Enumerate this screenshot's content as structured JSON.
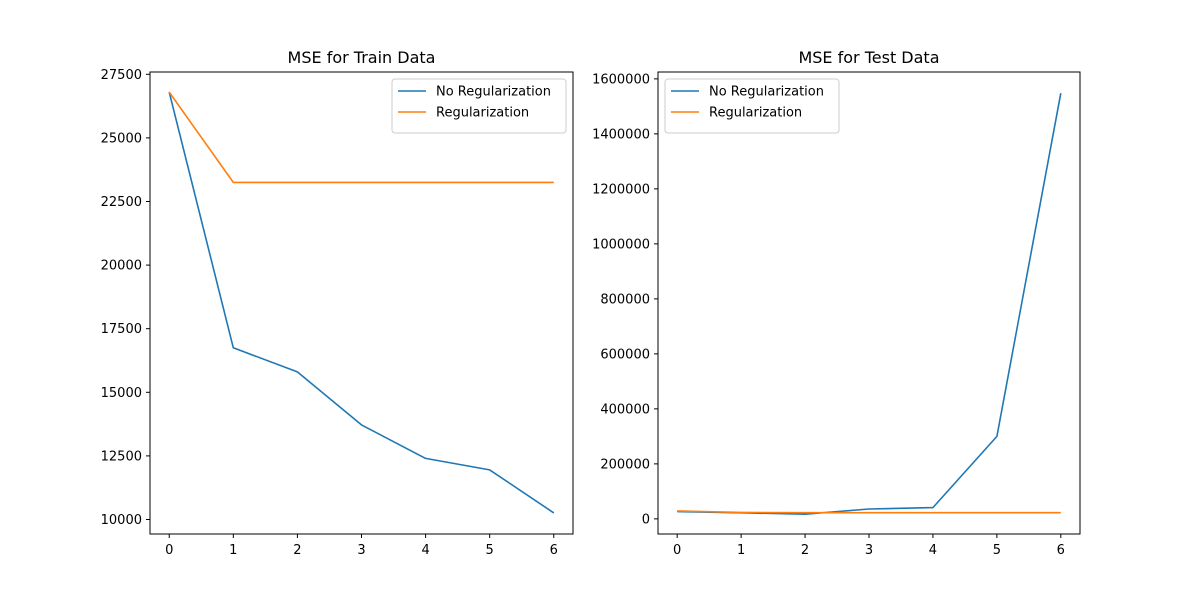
{
  "chart_data": [
    {
      "type": "line",
      "title": "MSE for Train Data",
      "xlabel": "",
      "ylabel": "",
      "x": [
        0,
        1,
        2,
        3,
        4,
        5,
        6
      ],
      "xlim": [
        -0.3,
        6.3
      ],
      "ylim": [
        9430,
        27590
      ],
      "xticks": [
        0,
        1,
        2,
        3,
        4,
        5,
        6
      ],
      "yticks": [
        10000,
        12500,
        15000,
        17500,
        20000,
        22500,
        25000,
        27500
      ],
      "grid": false,
      "legend_position": "top-right",
      "series": [
        {
          "name": "No Regularization",
          "color": "#1f77b4",
          "values": [
            26800,
            16750,
            15800,
            13720,
            12400,
            11950,
            10260
          ]
        },
        {
          "name": "Regularization",
          "color": "#ff7f0e",
          "values": [
            26800,
            23250,
            23250,
            23250,
            23250,
            23250,
            23250
          ]
        }
      ]
    },
    {
      "type": "line",
      "title": "MSE for Test Data",
      "xlabel": "",
      "ylabel": "",
      "x": [
        0,
        1,
        2,
        3,
        4,
        5,
        6
      ],
      "xlim": [
        -0.3,
        6.3
      ],
      "ylim": [
        -55000,
        1625000
      ],
      "xticks": [
        0,
        1,
        2,
        3,
        4,
        5,
        6
      ],
      "yticks": [
        0,
        200000,
        400000,
        600000,
        800000,
        1000000,
        1200000,
        1400000,
        1600000
      ],
      "grid": false,
      "legend_position": "top-left",
      "series": [
        {
          "name": "No Regularization",
          "color": "#1f77b4",
          "values": [
            26500,
            22000,
            17000,
            36000,
            41000,
            300000,
            1548000
          ]
        },
        {
          "name": "Regularization",
          "color": "#ff7f0e",
          "values": [
            29000,
            23500,
            22500,
            22500,
            22500,
            22500,
            22500
          ]
        }
      ]
    }
  ]
}
